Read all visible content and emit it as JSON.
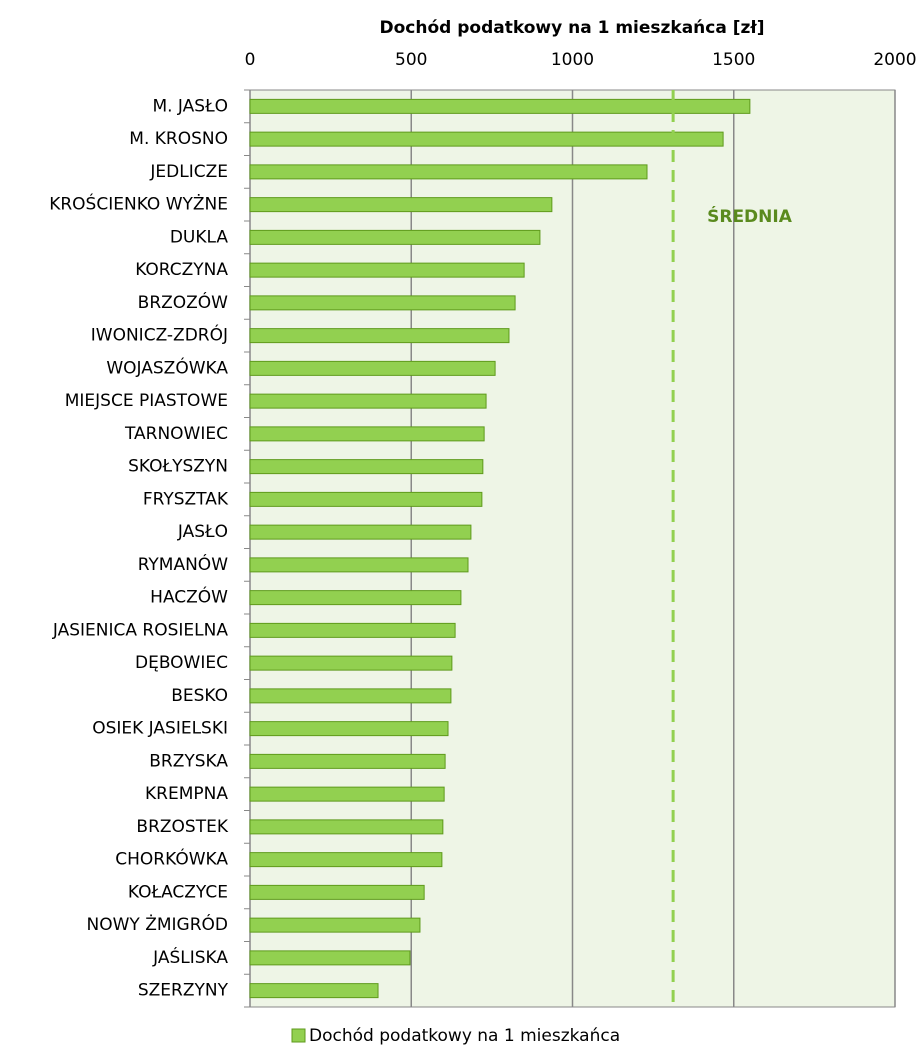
{
  "chart_data": {
    "type": "bar",
    "orientation": "horizontal",
    "title": "Dochód podatkowy na 1 mieszkańca [zł]",
    "categories": [
      "M. JASŁO",
      "M. KROSNO",
      "JEDLICZE",
      "KROŚCIENKO WYŻNE",
      "DUKLA",
      "KORCZYNA",
      "BRZOZÓW",
      "IWONICZ-ZDRÓJ",
      "WOJASZÓWKA",
      "MIEJSCE PIASTOWE",
      "TARNOWIEC",
      "SKOŁYSZYN",
      "FRYSZTAK",
      "JASŁO",
      "RYMANÓW",
      "HACZÓW",
      "JASIENICA ROSIELNA",
      "DĘBOWIEC",
      "BESKO",
      "OSIEK JASIELSKI",
      "BRZYSKA",
      "KREMPNA",
      "BRZOSTEK",
      "CHORKÓWKA",
      "KOŁACZYCE",
      "NOWY ŻMIGRÓD",
      "JAŚLISKA",
      "SZERZYNY"
    ],
    "series": [
      {
        "name": "Dochód podatkowy na 1 mieszkańca",
        "color": "#92d050",
        "values": [
          1550,
          1467,
          1231,
          936,
          899,
          850,
          822,
          803,
          760,
          732,
          726,
          722,
          719,
          685,
          676,
          654,
          636,
          626,
          623,
          614,
          605,
          602,
          598,
          595,
          540,
          527,
          496,
          397
        ]
      }
    ],
    "xlim": [
      0,
      2000
    ],
    "xticks": [
      0,
      500,
      1000,
      1500,
      2000
    ],
    "grid": true,
    "average": {
      "label": "ŚREDNIA",
      "value": 1312
    },
    "legend": "bottom"
  }
}
